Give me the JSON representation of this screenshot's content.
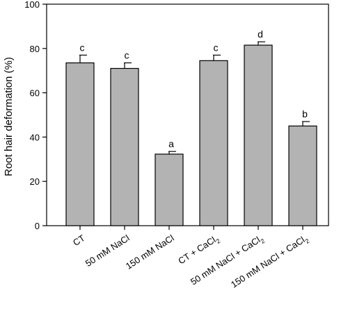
{
  "chart_data": {
    "type": "bar",
    "title": "",
    "xlabel": "",
    "ylabel": "Root hair deformation (%)",
    "ylim": [
      0,
      100
    ],
    "yticks": [
      0,
      20,
      40,
      60,
      80,
      100
    ],
    "grid": false,
    "categories": [
      {
        "main": "CT",
        "sub": ""
      },
      {
        "main": "50 mM NaCl",
        "sub": ""
      },
      {
        "main": "150 mM NaCl",
        "sub": ""
      },
      {
        "main": "CT + CaCl",
        "sub": "2"
      },
      {
        "main": "50 mM NaCl + CaCl",
        "sub": "2"
      },
      {
        "main": "150 mM NaCl + CaCl",
        "sub": "2"
      }
    ],
    "values": [
      73.5,
      71,
      32.3,
      74.5,
      81.5,
      45
    ],
    "errors": [
      3.5,
      2.5,
      1.2,
      2.5,
      1.5,
      2
    ],
    "letters": [
      "c",
      "c",
      "a",
      "c",
      "d",
      "b"
    ],
    "bar_color": "#b3b3b3"
  }
}
